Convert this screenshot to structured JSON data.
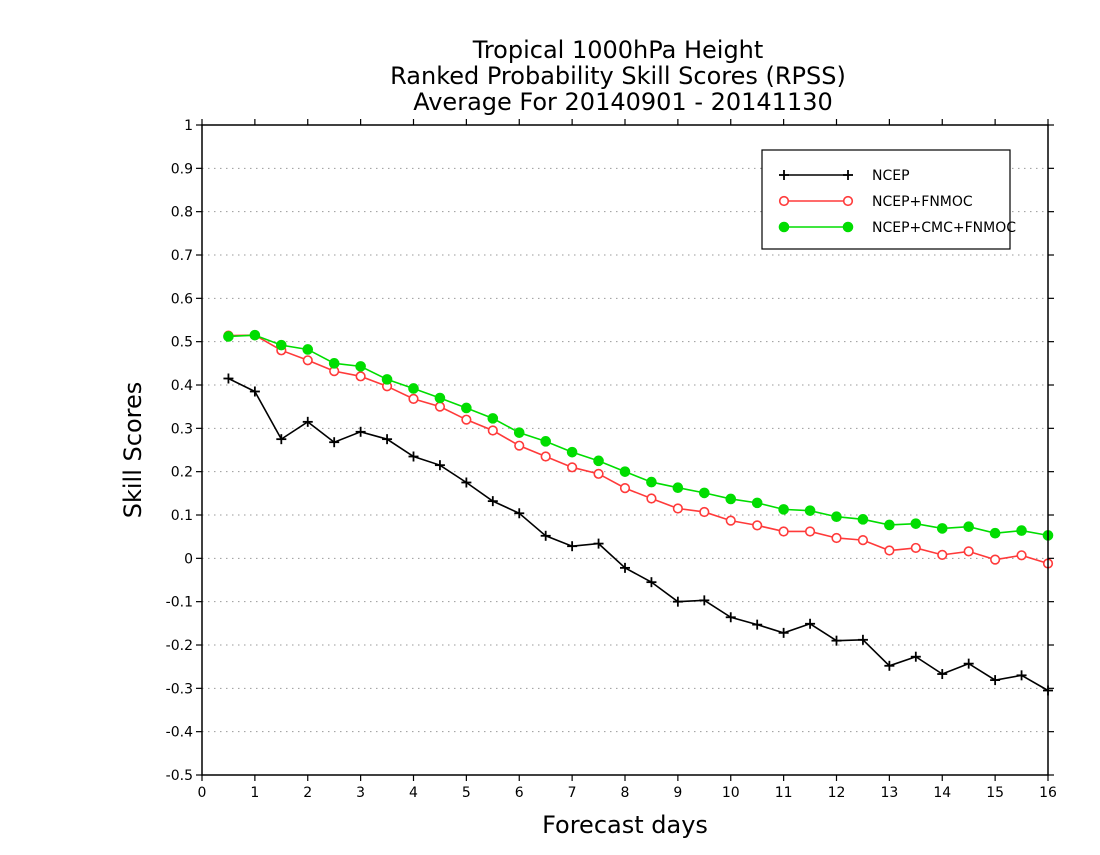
{
  "chart_data": {
    "type": "line",
    "title_lines": [
      "Tropical 1000hPa Height",
      "Ranked Probability Skill Scores (RPSS)",
      "Average For 20140901 - 20141130"
    ],
    "xlabel": "Forecast days",
    "ylabel": "Skill Scores",
    "xlim": [
      0,
      16
    ],
    "ylim": [
      -0.5,
      1
    ],
    "x_ticks": [
      "0",
      "1",
      "2",
      "3",
      "4",
      "5",
      "6",
      "7",
      "8",
      "9",
      "10",
      "11",
      "12",
      "13",
      "14",
      "15",
      "16"
    ],
    "y_ticks": [
      "1",
      "0.9",
      "0.8",
      "0.7",
      "0.6",
      "0.5",
      "0.4",
      "0.3",
      "0.2",
      "0.1",
      "0",
      "-0.1",
      "-0.2",
      "-0.3",
      "-0.4",
      "-0.5"
    ],
    "grid": true,
    "legend_position": "top-right",
    "x": [
      0.5,
      1,
      1.5,
      2,
      2.5,
      3,
      3.5,
      4,
      4.5,
      5,
      5.5,
      6,
      6.5,
      7,
      7.5,
      8,
      8.5,
      9,
      9.5,
      10,
      10.5,
      11,
      11.5,
      12,
      12.5,
      13,
      13.5,
      14,
      14.5,
      15,
      15.5,
      16
    ],
    "series": [
      {
        "name": "NCEP",
        "color": "#000000",
        "marker": "plus",
        "values": [
          0.415,
          0.385,
          0.275,
          0.315,
          0.268,
          0.292,
          0.275,
          0.235,
          0.215,
          0.175,
          0.132,
          0.104,
          0.052,
          0.028,
          0.034,
          -0.022,
          -0.055,
          -0.1,
          -0.097,
          -0.136,
          -0.153,
          -0.172,
          -0.151,
          -0.19,
          -0.188,
          -0.248,
          -0.227,
          -0.267,
          -0.243,
          -0.281,
          -0.27,
          -0.305
        ]
      },
      {
        "name": "NCEP+FNMOC",
        "color": "#ff3a3a",
        "marker": "open-circle",
        "values": [
          0.514,
          0.515,
          0.48,
          0.457,
          0.432,
          0.42,
          0.397,
          0.368,
          0.35,
          0.32,
          0.295,
          0.26,
          0.235,
          0.21,
          0.195,
          0.162,
          0.138,
          0.115,
          0.107,
          0.087,
          0.076,
          0.062,
          0.062,
          0.047,
          0.042,
          0.018,
          0.024,
          0.008,
          0.016,
          -0.003,
          0.007,
          -0.012
        ]
      },
      {
        "name": "NCEP+CMC+FNMOC",
        "color": "#00dd00",
        "marker": "filled-circle",
        "values": [
          0.512,
          0.515,
          0.492,
          0.482,
          0.45,
          0.443,
          0.413,
          0.392,
          0.37,
          0.347,
          0.323,
          0.29,
          0.27,
          0.245,
          0.225,
          0.2,
          0.176,
          0.163,
          0.151,
          0.137,
          0.128,
          0.113,
          0.11,
          0.096,
          0.09,
          0.077,
          0.08,
          0.069,
          0.073,
          0.058,
          0.064,
          0.053
        ]
      }
    ]
  }
}
